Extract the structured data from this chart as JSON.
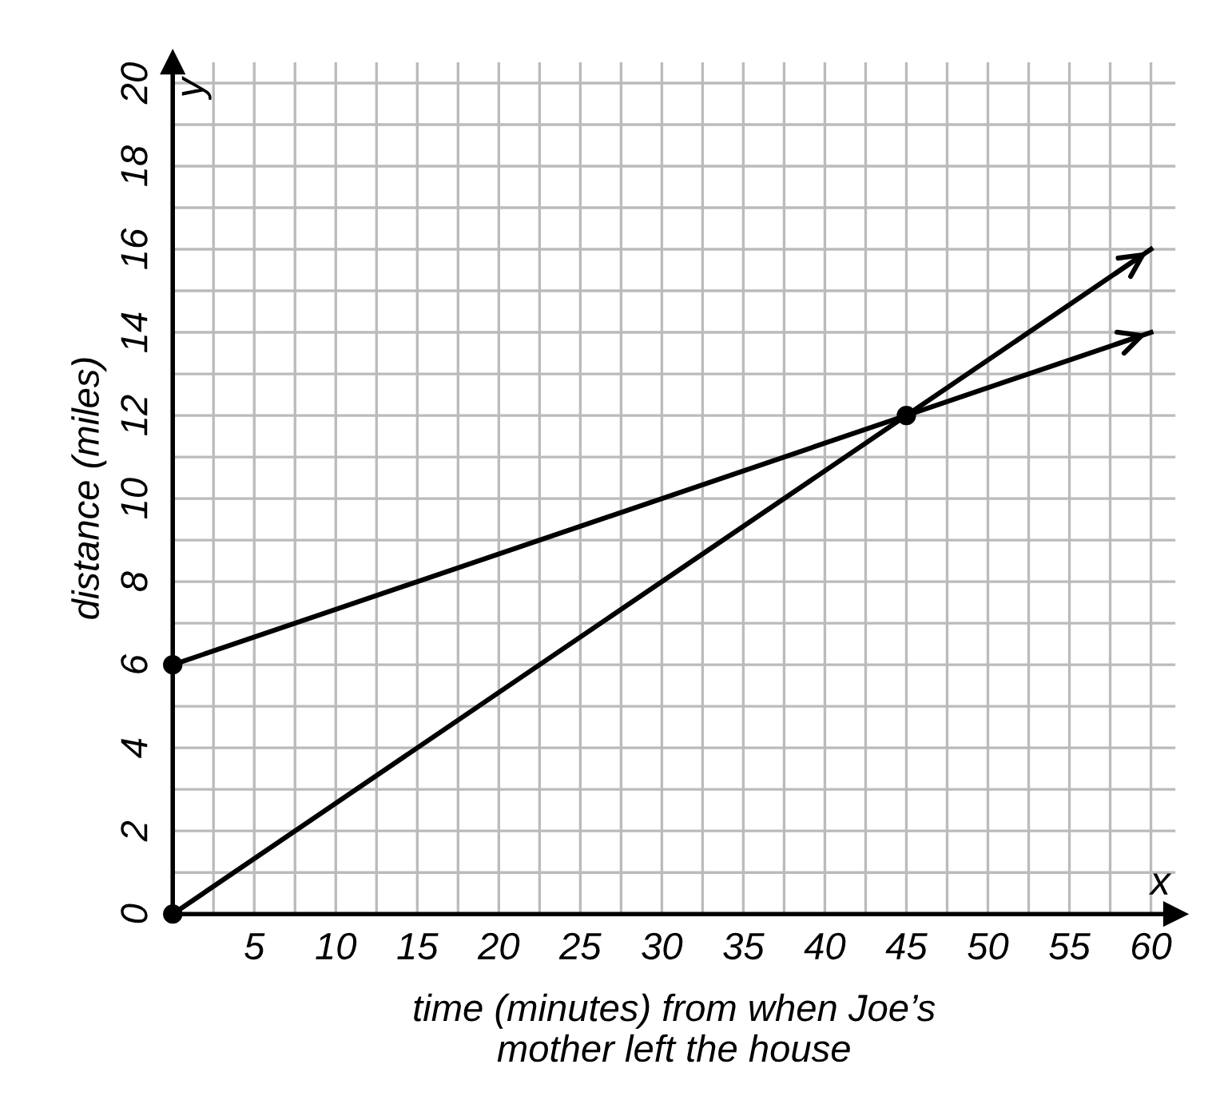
{
  "chart_data": {
    "type": "line",
    "xlabel": "time (minutes) from when Joe’s\nmother left the house",
    "ylabel": "distance (miles)",
    "annotations": [
      "x",
      "y"
    ],
    "xlim": [
      0,
      61.5
    ],
    "ylim": [
      0,
      20.5
    ],
    "xticks": [
      {
        "value": 0,
        "label": null
      },
      {
        "value": 2.5,
        "label": null
      },
      5,
      {
        "value": 7.5,
        "label": null
      },
      10,
      {
        "value": 12.5,
        "label": null
      },
      15,
      {
        "value": 17.5,
        "label": null
      },
      20,
      {
        "value": 22.5,
        "label": null
      },
      25,
      {
        "value": 27.5,
        "label": null
      },
      30,
      {
        "value": 32.5,
        "label": null
      },
      35,
      {
        "value": 37.5,
        "label": null
      },
      40,
      {
        "value": 42.5,
        "label": null
      },
      45,
      {
        "value": 47.5,
        "label": null
      },
      50,
      {
        "value": 52.5,
        "label": null
      },
      55,
      {
        "value": 57.5,
        "label": null
      },
      60
    ],
    "yticks": [
      0,
      {
        "value": 1,
        "label": null
      },
      2,
      {
        "value": 3,
        "label": null
      },
      4,
      {
        "value": 5,
        "label": null
      },
      6,
      {
        "value": 7,
        "label": null
      },
      8,
      {
        "value": 9,
        "label": null
      },
      10,
      {
        "value": 11,
        "label": null
      },
      12,
      {
        "value": 13,
        "label": null
      },
      14,
      {
        "value": 15,
        "label": null
      },
      16,
      {
        "value": 17,
        "label": null
      },
      18,
      {
        "value": 19,
        "label": null
      },
      20
    ],
    "grid": true,
    "line_style": "solid",
    "marker": "none",
    "series": [
      {
        "type": "line",
        "color": "#000000",
        "x": [
          0,
          60
        ],
        "values": [
          6,
          14
        ]
      },
      {
        "type": "line",
        "color": "#000000",
        "x": [
          0,
          60
        ],
        "values": [
          0,
          16
        ]
      },
      {
        "type": "scatter",
        "color": "#000000",
        "x": [
          0,
          0,
          45
        ],
        "values": [
          6,
          0,
          12
        ],
        "marker": "circle"
      }
    ]
  }
}
